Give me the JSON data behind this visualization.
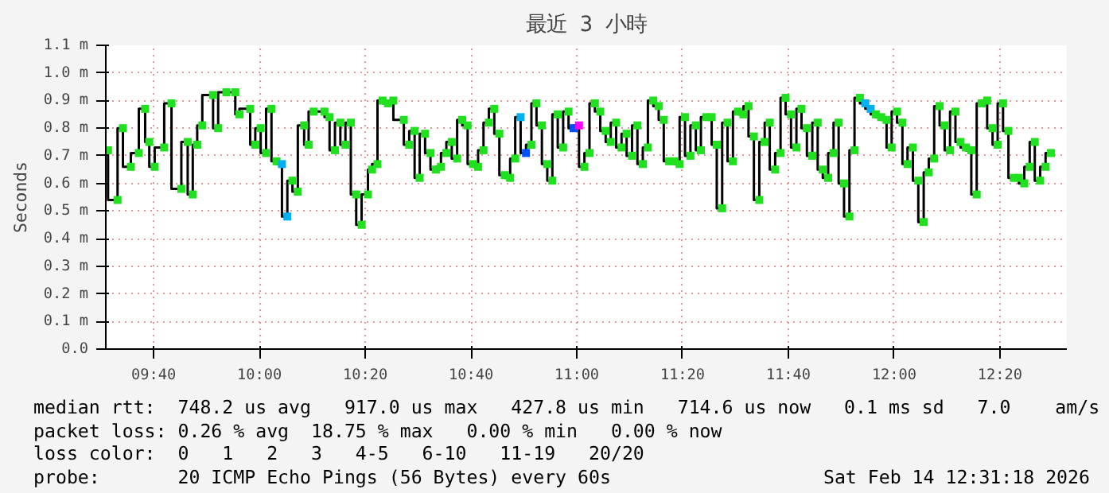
{
  "chart_data": {
    "type": "step",
    "title": "最近 3 小時",
    "ylabel": "Seconds",
    "xlim": [
      9.516,
      12.544
    ],
    "xticks": [
      {
        "value": 9.6667,
        "label": "09:40"
      },
      {
        "value": 10.0,
        "label": "10:00"
      },
      {
        "value": 10.3333,
        "label": "10:20"
      },
      {
        "value": 10.6667,
        "label": "10:40"
      },
      {
        "value": 11.0,
        "label": "11:00"
      },
      {
        "value": 11.3333,
        "label": "11:20"
      },
      {
        "value": 11.6667,
        "label": "11:40"
      },
      {
        "value": 12.0,
        "label": "12:00"
      },
      {
        "value": 12.3333,
        "label": "12:20"
      }
    ],
    "ylim": [
      0,
      1.1
    ],
    "yticks": [
      {
        "value": 0,
        "label": "0.0"
      },
      {
        "value": 0.1,
        "label": "0.1 m"
      },
      {
        "value": 0.2,
        "label": "0.2 m"
      },
      {
        "value": 0.3,
        "label": "0.3 m"
      },
      {
        "value": 0.4,
        "label": "0.4 m"
      },
      {
        "value": 0.5,
        "label": "0.5 m"
      },
      {
        "value": 0.6,
        "label": "0.6 m"
      },
      {
        "value": 0.7,
        "label": "0.7 m"
      },
      {
        "value": 0.8,
        "label": "0.8 m"
      },
      {
        "value": 0.9,
        "label": "0.9 m"
      },
      {
        "value": 1.0,
        "label": "1.0 m"
      },
      {
        "value": 1.1,
        "label": "1.1 m"
      }
    ],
    "grid": true,
    "marker": "square",
    "series": [
      {
        "color": "#000000",
        "x": [
          9.523,
          9.553,
          9.57,
          9.595,
          9.62,
          9.64,
          9.653,
          9.67,
          9.7,
          9.723,
          9.754,
          9.774,
          9.79,
          9.804,
          9.82,
          9.854,
          9.87,
          9.896,
          9.924,
          9.937,
          9.971,
          9.987,
          10.004,
          10.021,
          10.038,
          10.054,
          10.071,
          10.088,
          10.104,
          10.121,
          10.141,
          10.155,
          10.171,
          10.205,
          10.221,
          10.238,
          10.255,
          10.271,
          10.288,
          10.305,
          10.322,
          10.342,
          10.355,
          10.372,
          10.388,
          10.405,
          10.422,
          10.455,
          10.472,
          10.489,
          10.505,
          10.522,
          10.539,
          10.556,
          10.572,
          10.589,
          10.606,
          10.623,
          10.639,
          10.656,
          10.673,
          10.689,
          10.706,
          10.723,
          10.74,
          10.756,
          10.773,
          10.79,
          10.806,
          10.823,
          10.84,
          10.857,
          10.873,
          10.89,
          10.907,
          10.923,
          10.94,
          10.957,
          10.974,
          10.99,
          11.007,
          11.024,
          11.04,
          11.057,
          11.074,
          11.091,
          11.107,
          11.124,
          11.141,
          11.157,
          11.174,
          11.191,
          11.208,
          11.224,
          11.241,
          11.258,
          11.274,
          11.291,
          11.308,
          11.324,
          11.341,
          11.358,
          11.375,
          11.391,
          11.408,
          11.425,
          11.441,
          11.458,
          11.475,
          11.492,
          11.508,
          11.525,
          11.541,
          11.558,
          11.575,
          11.592,
          11.608,
          11.625,
          11.642,
          11.658,
          11.675,
          11.692,
          11.708,
          11.725,
          11.742,
          11.759,
          11.775,
          11.792,
          11.809,
          11.825,
          11.842,
          11.859,
          11.875,
          11.892,
          11.909,
          11.926,
          11.942,
          11.959,
          11.976,
          11.992,
          12.009,
          12.026,
          12.042,
          12.059,
          12.076,
          12.093,
          12.109,
          12.126,
          12.143,
          12.159,
          12.176,
          12.193,
          12.209,
          12.226,
          12.243,
          12.26,
          12.276,
          12.293,
          12.31,
          12.326,
          12.343,
          12.36,
          12.377,
          12.393,
          12.41,
          12.427,
          12.443,
          12.46,
          12.477,
          12.494
        ],
        "values": [
          0.72,
          0.54,
          0.8,
          0.66,
          0.71,
          0.87,
          0.75,
          0.66,
          0.73,
          0.89,
          0.58,
          0.75,
          0.56,
          0.74,
          0.81,
          0.92,
          0.8,
          0.93,
          0.93,
          0.85,
          0.87,
          0.74,
          0.8,
          0.71,
          0.87,
          0.68,
          0.67,
          0.48,
          0.61,
          0.57,
          0.81,
          0.74,
          0.86,
          0.86,
          0.84,
          0.72,
          0.82,
          0.74,
          0.82,
          0.56,
          0.45,
          0.56,
          0.65,
          0.67,
          0.9,
          0.89,
          0.9,
          0.83,
          0.74,
          0.79,
          0.62,
          0.78,
          0.71,
          0.65,
          0.66,
          0.71,
          0.75,
          0.69,
          0.83,
          0.81,
          0.67,
          0.66,
          0.72,
          0.82,
          0.87,
          0.78,
          0.63,
          0.62,
          0.69,
          0.84,
          0.71,
          0.74,
          0.89,
          0.81,
          0.67,
          0.61,
          0.85,
          0.73,
          0.86,
          0.8,
          0.81,
          0.66,
          0.71,
          0.89,
          0.86,
          0.79,
          0.75,
          0.82,
          0.73,
          0.78,
          0.7,
          0.81,
          0.67,
          0.73,
          0.9,
          0.88,
          0.83,
          0.68,
          0.68,
          0.67,
          0.84,
          0.7,
          0.81,
          0.72,
          0.84,
          0.84,
          0.74,
          0.51,
          0.82,
          0.68,
          0.86,
          0.85,
          0.88,
          0.77,
          0.54,
          0.75,
          0.82,
          0.65,
          0.71,
          0.91,
          0.85,
          0.73,
          0.87,
          0.8,
          0.7,
          0.82,
          0.65,
          0.62,
          0.71,
          0.82,
          0.6,
          0.48,
          0.72,
          0.91,
          0.89,
          0.87,
          0.85,
          0.84,
          0.83,
          0.73,
          0.86,
          0.82,
          0.67,
          0.73,
          0.61,
          0.46,
          0.64,
          0.69,
          0.88,
          0.81,
          0.72,
          0.86,
          0.75,
          0.73,
          0.72,
          0.56,
          0.89,
          0.9,
          0.8,
          0.74,
          0.89,
          0.79,
          0.62,
          0.62,
          0.6,
          0.66,
          0.75,
          0.61,
          0.66,
          0.71
        ],
        "colors": [
          "#20e020",
          "#20e020",
          "#20e020",
          "#20e020",
          "#20e020",
          "#20e020",
          "#20e020",
          "#20e020",
          "#20e020",
          "#20e020",
          "#20e020",
          "#20e020",
          "#20e020",
          "#20e020",
          "#20e020",
          "#20e020",
          "#20e020",
          "#20e020",
          "#20e020",
          "#20e020",
          "#20e020",
          "#20e020",
          "#20e020",
          "#20e020",
          "#20e020",
          "#20e020",
          "#00b0f0",
          "#00b0f0",
          "#20e020",
          "#20e020",
          "#20e020",
          "#20e020",
          "#20e020",
          "#20e020",
          "#20e020",
          "#20e020",
          "#20e020",
          "#20e020",
          "#20e020",
          "#20e020",
          "#20e020",
          "#20e020",
          "#20e020",
          "#20e020",
          "#20e020",
          "#20e020",
          "#20e020",
          "#20e020",
          "#20e020",
          "#20e020",
          "#20e020",
          "#20e020",
          "#20e020",
          "#20e020",
          "#20e020",
          "#20e020",
          "#20e020",
          "#20e020",
          "#20e020",
          "#20e020",
          "#20e020",
          "#20e020",
          "#20e020",
          "#20e020",
          "#20e020",
          "#20e020",
          "#20e020",
          "#20e020",
          "#20e020",
          "#00b0f0",
          "#0050ff",
          "#20e020",
          "#20e020",
          "#20e020",
          "#20e020",
          "#20e020",
          "#20e020",
          "#20e020",
          "#20e020",
          "#0050ff",
          "#ff00ff",
          "#20e020",
          "#20e020",
          "#20e020",
          "#20e020",
          "#20e020",
          "#20e020",
          "#20e020",
          "#20e020",
          "#20e020",
          "#20e020",
          "#20e020",
          "#20e020",
          "#20e020",
          "#20e020",
          "#20e020",
          "#20e020",
          "#20e020",
          "#20e020",
          "#20e020",
          "#20e020",
          "#20e020",
          "#20e020",
          "#20e020",
          "#20e020",
          "#20e020",
          "#20e020",
          "#20e020",
          "#20e020",
          "#20e020",
          "#20e020",
          "#20e020",
          "#20e020",
          "#20e020",
          "#20e020",
          "#20e020",
          "#20e020",
          "#20e020",
          "#20e020",
          "#20e020",
          "#20e020",
          "#20e020",
          "#20e020",
          "#20e020",
          "#20e020",
          "#20e020",
          "#20e020",
          "#20e020",
          "#20e020",
          "#20e020",
          "#20e020",
          "#20e020",
          "#20e020",
          "#20e020",
          "#00b0f0",
          "#00b0f0",
          "#20e020",
          "#20e020",
          "#20e020",
          "#20e020",
          "#20e020",
          "#20e020",
          "#20e020",
          "#20e020",
          "#20e020",
          "#20e020",
          "#20e020",
          "#20e020",
          "#20e020",
          "#20e020",
          "#20e020",
          "#20e020",
          "#20e020",
          "#20e020",
          "#20e020",
          "#20e020",
          "#20e020",
          "#20e020",
          "#20e020",
          "#20e020",
          "#20e020",
          "#20e020",
          "#20e020",
          "#20e020",
          "#20e020",
          "#20e020",
          "#20e020",
          "#20e020",
          "#20e020",
          "#20e020"
        ]
      }
    ],
    "annotations": [
      "median rtt:  748.2 us avg   917.0 us max   427.8 us min   714.6 us now   0.1 ms sd   7.0    am/s",
      "packet loss: 0.26 % avg  18.75 % max   0.00 % min   0.00 % now",
      "loss color:  0   1   2   3   4-5   6-10   11-19   20/20",
      "probe:       20 ICMP Echo Pings (56 Bytes) every 60s",
      "Sat Feb 14 12:31:18 2026"
    ]
  }
}
